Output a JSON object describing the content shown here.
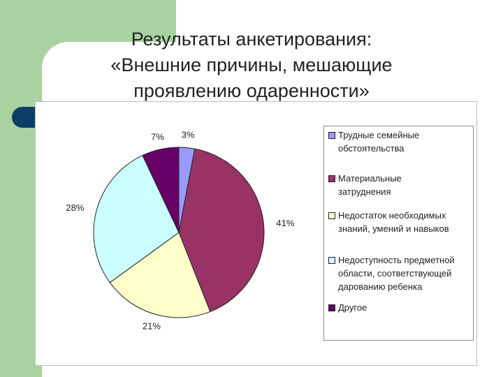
{
  "title_lines": [
    "Результаты анкетирования:",
    "«Внешние причины, мешающие",
    "проявлению одаренности»"
  ],
  "chart_data": {
    "type": "pie",
    "start_angle_deg": 0,
    "direction": "clockwise",
    "slices": [
      {
        "label": "Трудные семейные обстоятельства",
        "value": 3,
        "pct_label": "3%",
        "color": "#9999ff"
      },
      {
        "label": "Материальные затруднения",
        "value": 41,
        "pct_label": "41%",
        "color": "#993366"
      },
      {
        "label": "Недостаток необходимых знаний, умений и навыков",
        "value": 21,
        "pct_label": "21%",
        "color": "#ffffcc"
      },
      {
        "label": "Недоступность предметной области, соответствующей дарованию ребенка",
        "value": 28,
        "pct_label": "28%",
        "color": "#ccffff"
      },
      {
        "label": "Другое",
        "value": 7,
        "pct_label": "7%",
        "color": "#660066"
      }
    ],
    "legend": {
      "placement": "right",
      "lines": [
        [
          "Трудные семейные",
          "обстоятельства"
        ],
        [
          "Материальные",
          "затруднения"
        ],
        [
          "Недостаток необходимых",
          "знаний, умений и навыков"
        ],
        [
          "Недоступность предметной",
          "области, соответствующей",
          "дарованию ребенка"
        ],
        [
          "Другое"
        ]
      ]
    }
  }
}
